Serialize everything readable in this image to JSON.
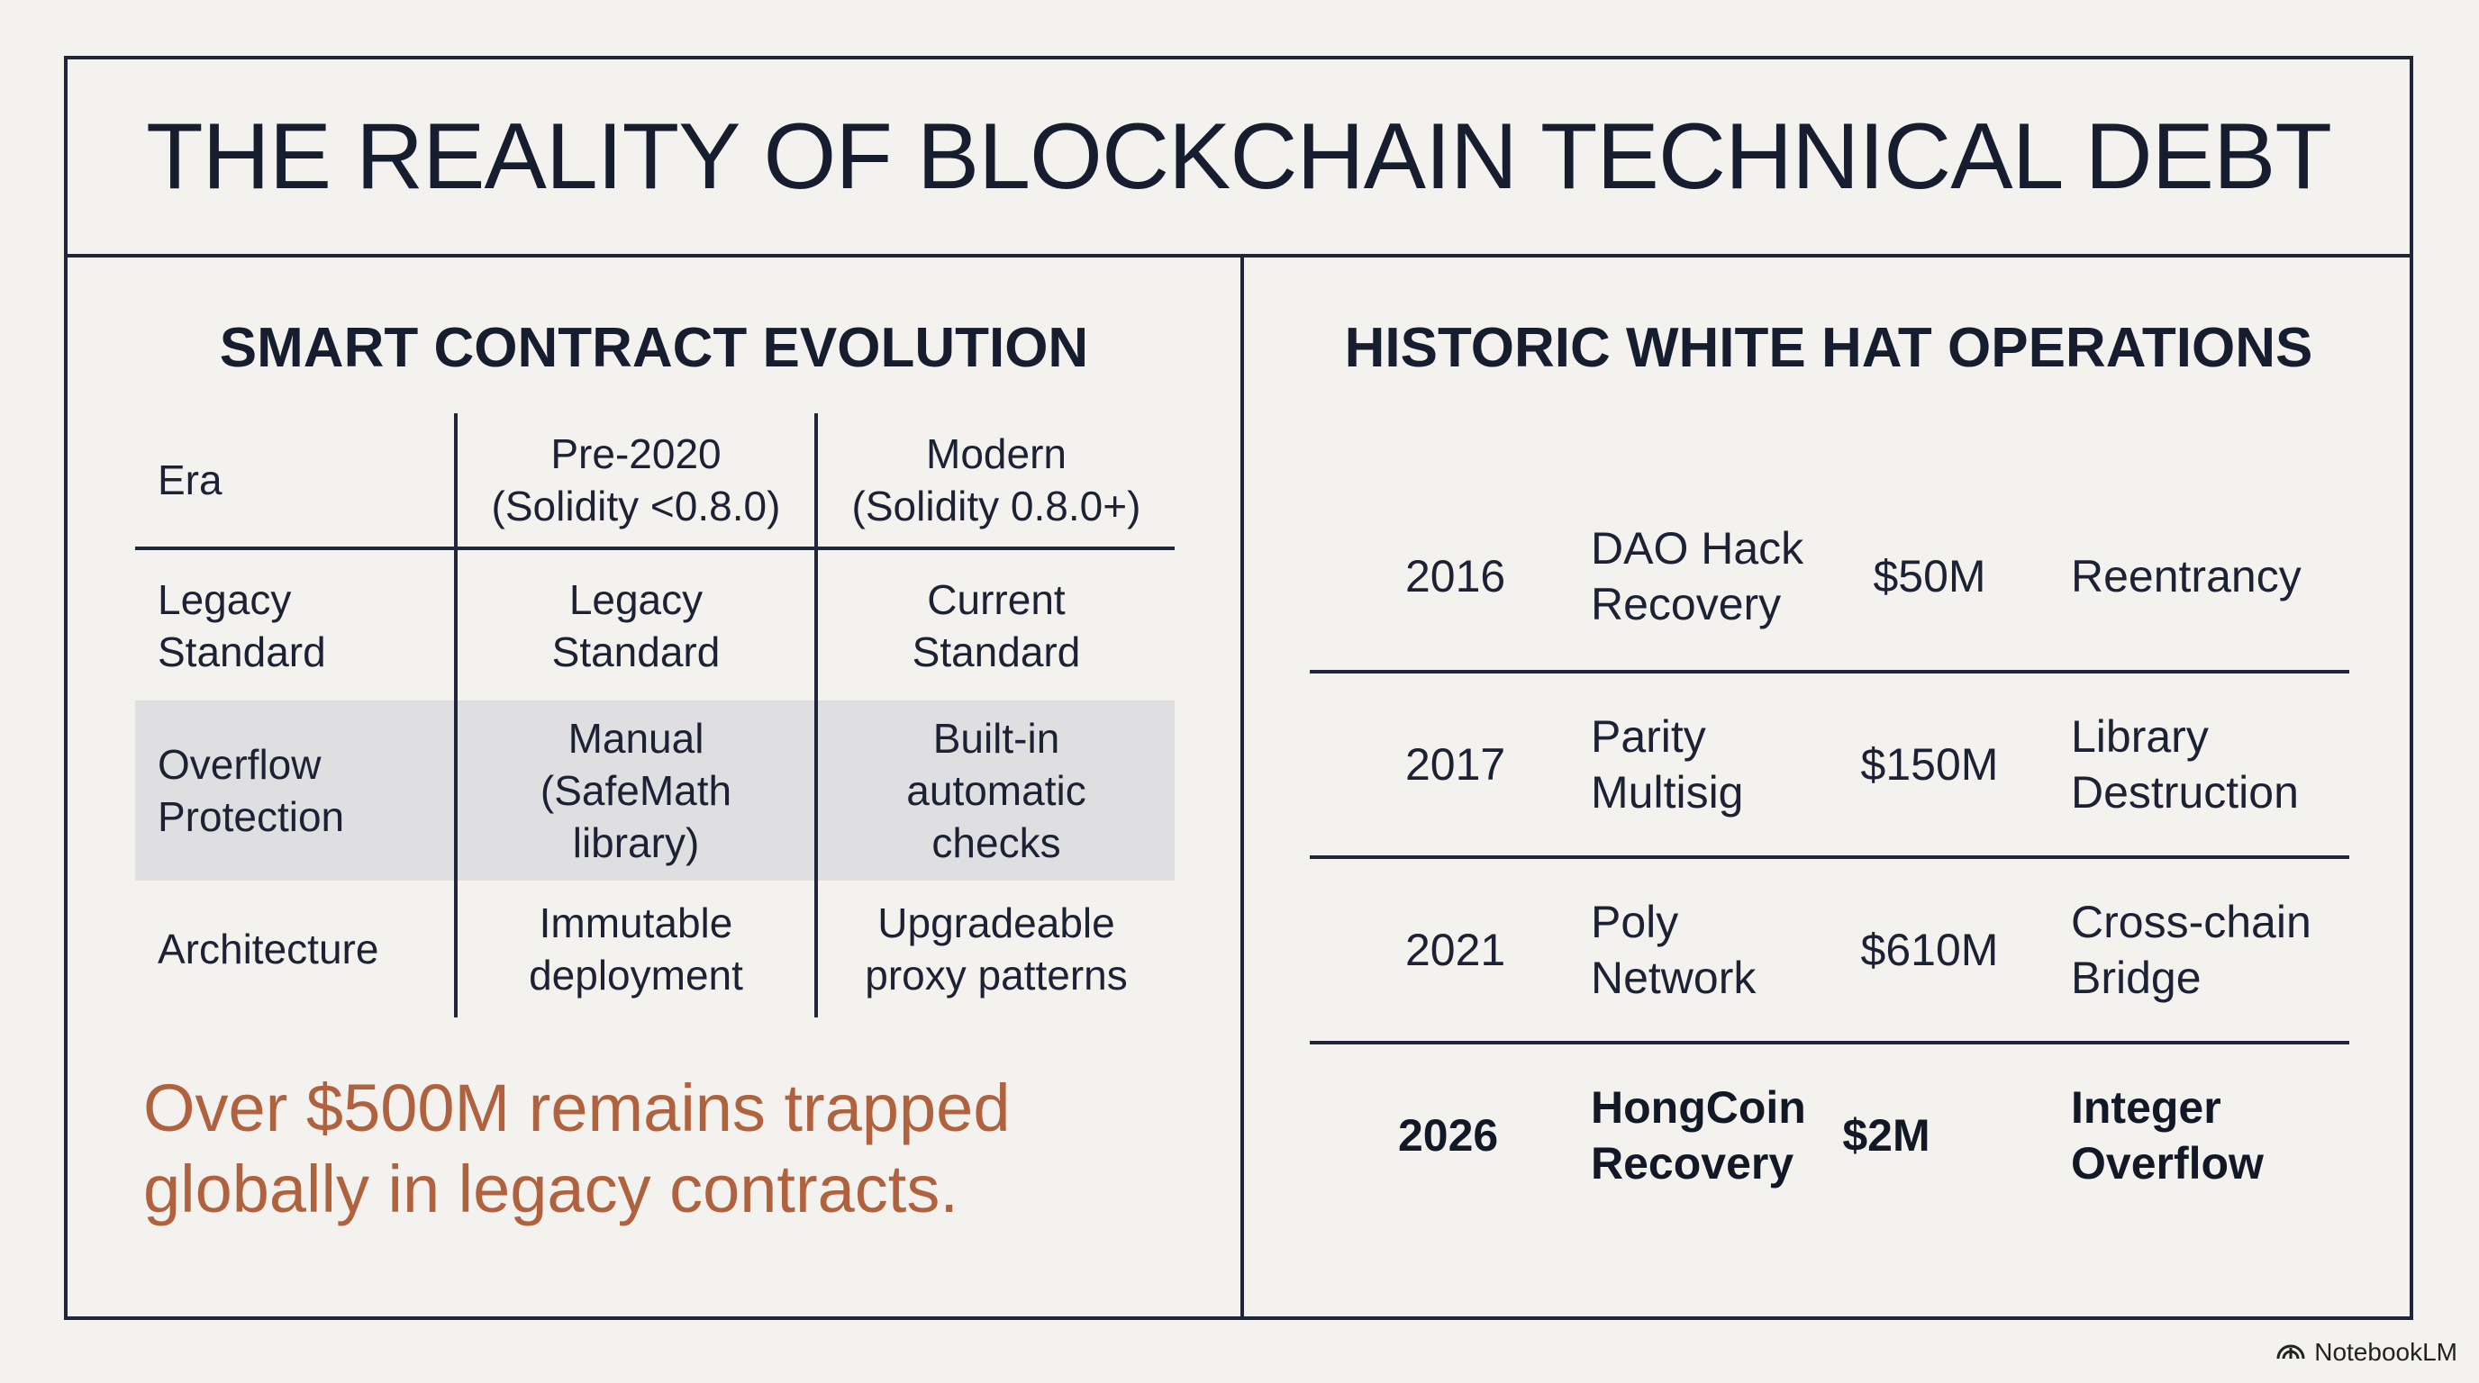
{
  "slide": {
    "title": "THE REALITY OF BLOCKCHAIN TECHNICAL DEBT"
  },
  "evolution": {
    "heading": "SMART CONTRACT EVOLUTION",
    "header": [
      "Era",
      "Pre-2020\n(Solidity <0.8.0)",
      "Modern\n(Solidity 0.8.0+)"
    ],
    "rows": [
      [
        "Legacy\nStandard",
        "Legacy\nStandard",
        "Current\nStandard"
      ],
      [
        "Overflow\nProtection",
        "Manual\n(SafeMath\nlibrary)",
        "Built-in\nautomatic\nchecks"
      ],
      [
        "Architecture",
        "Immutable\ndeployment",
        "Upgradeable\nproxy patterns"
      ]
    ],
    "callout": "Over $500M remains trapped\nglobally in legacy contracts."
  },
  "operations": {
    "heading": "HISTORIC WHITE HAT OPERATIONS",
    "rows": [
      {
        "year": "2016",
        "name": "DAO Hack\nRecovery",
        "amount": "$50M",
        "type": "Reentrancy"
      },
      {
        "year": "2017",
        "name": "Parity\nMultisig",
        "amount": "$150M",
        "type": "Library\nDestruction"
      },
      {
        "year": "2021",
        "name": "Poly\nNetwork",
        "amount": "$610M",
        "type": "Cross-chain\nBridge"
      },
      {
        "year": "2026",
        "name": "HongCoin\nRecovery",
        "amount": "$2M",
        "type": "Integer\nOverflow"
      }
    ]
  },
  "brand": {
    "label": "NotebookLM",
    "icon": "notebooklm-logo-icon"
  },
  "colors": {
    "background": "#f3f2ee",
    "border": "#1e2638",
    "text": "#161d2e",
    "accent": "#b0623f",
    "highlight_row": "#dfdfe1"
  }
}
